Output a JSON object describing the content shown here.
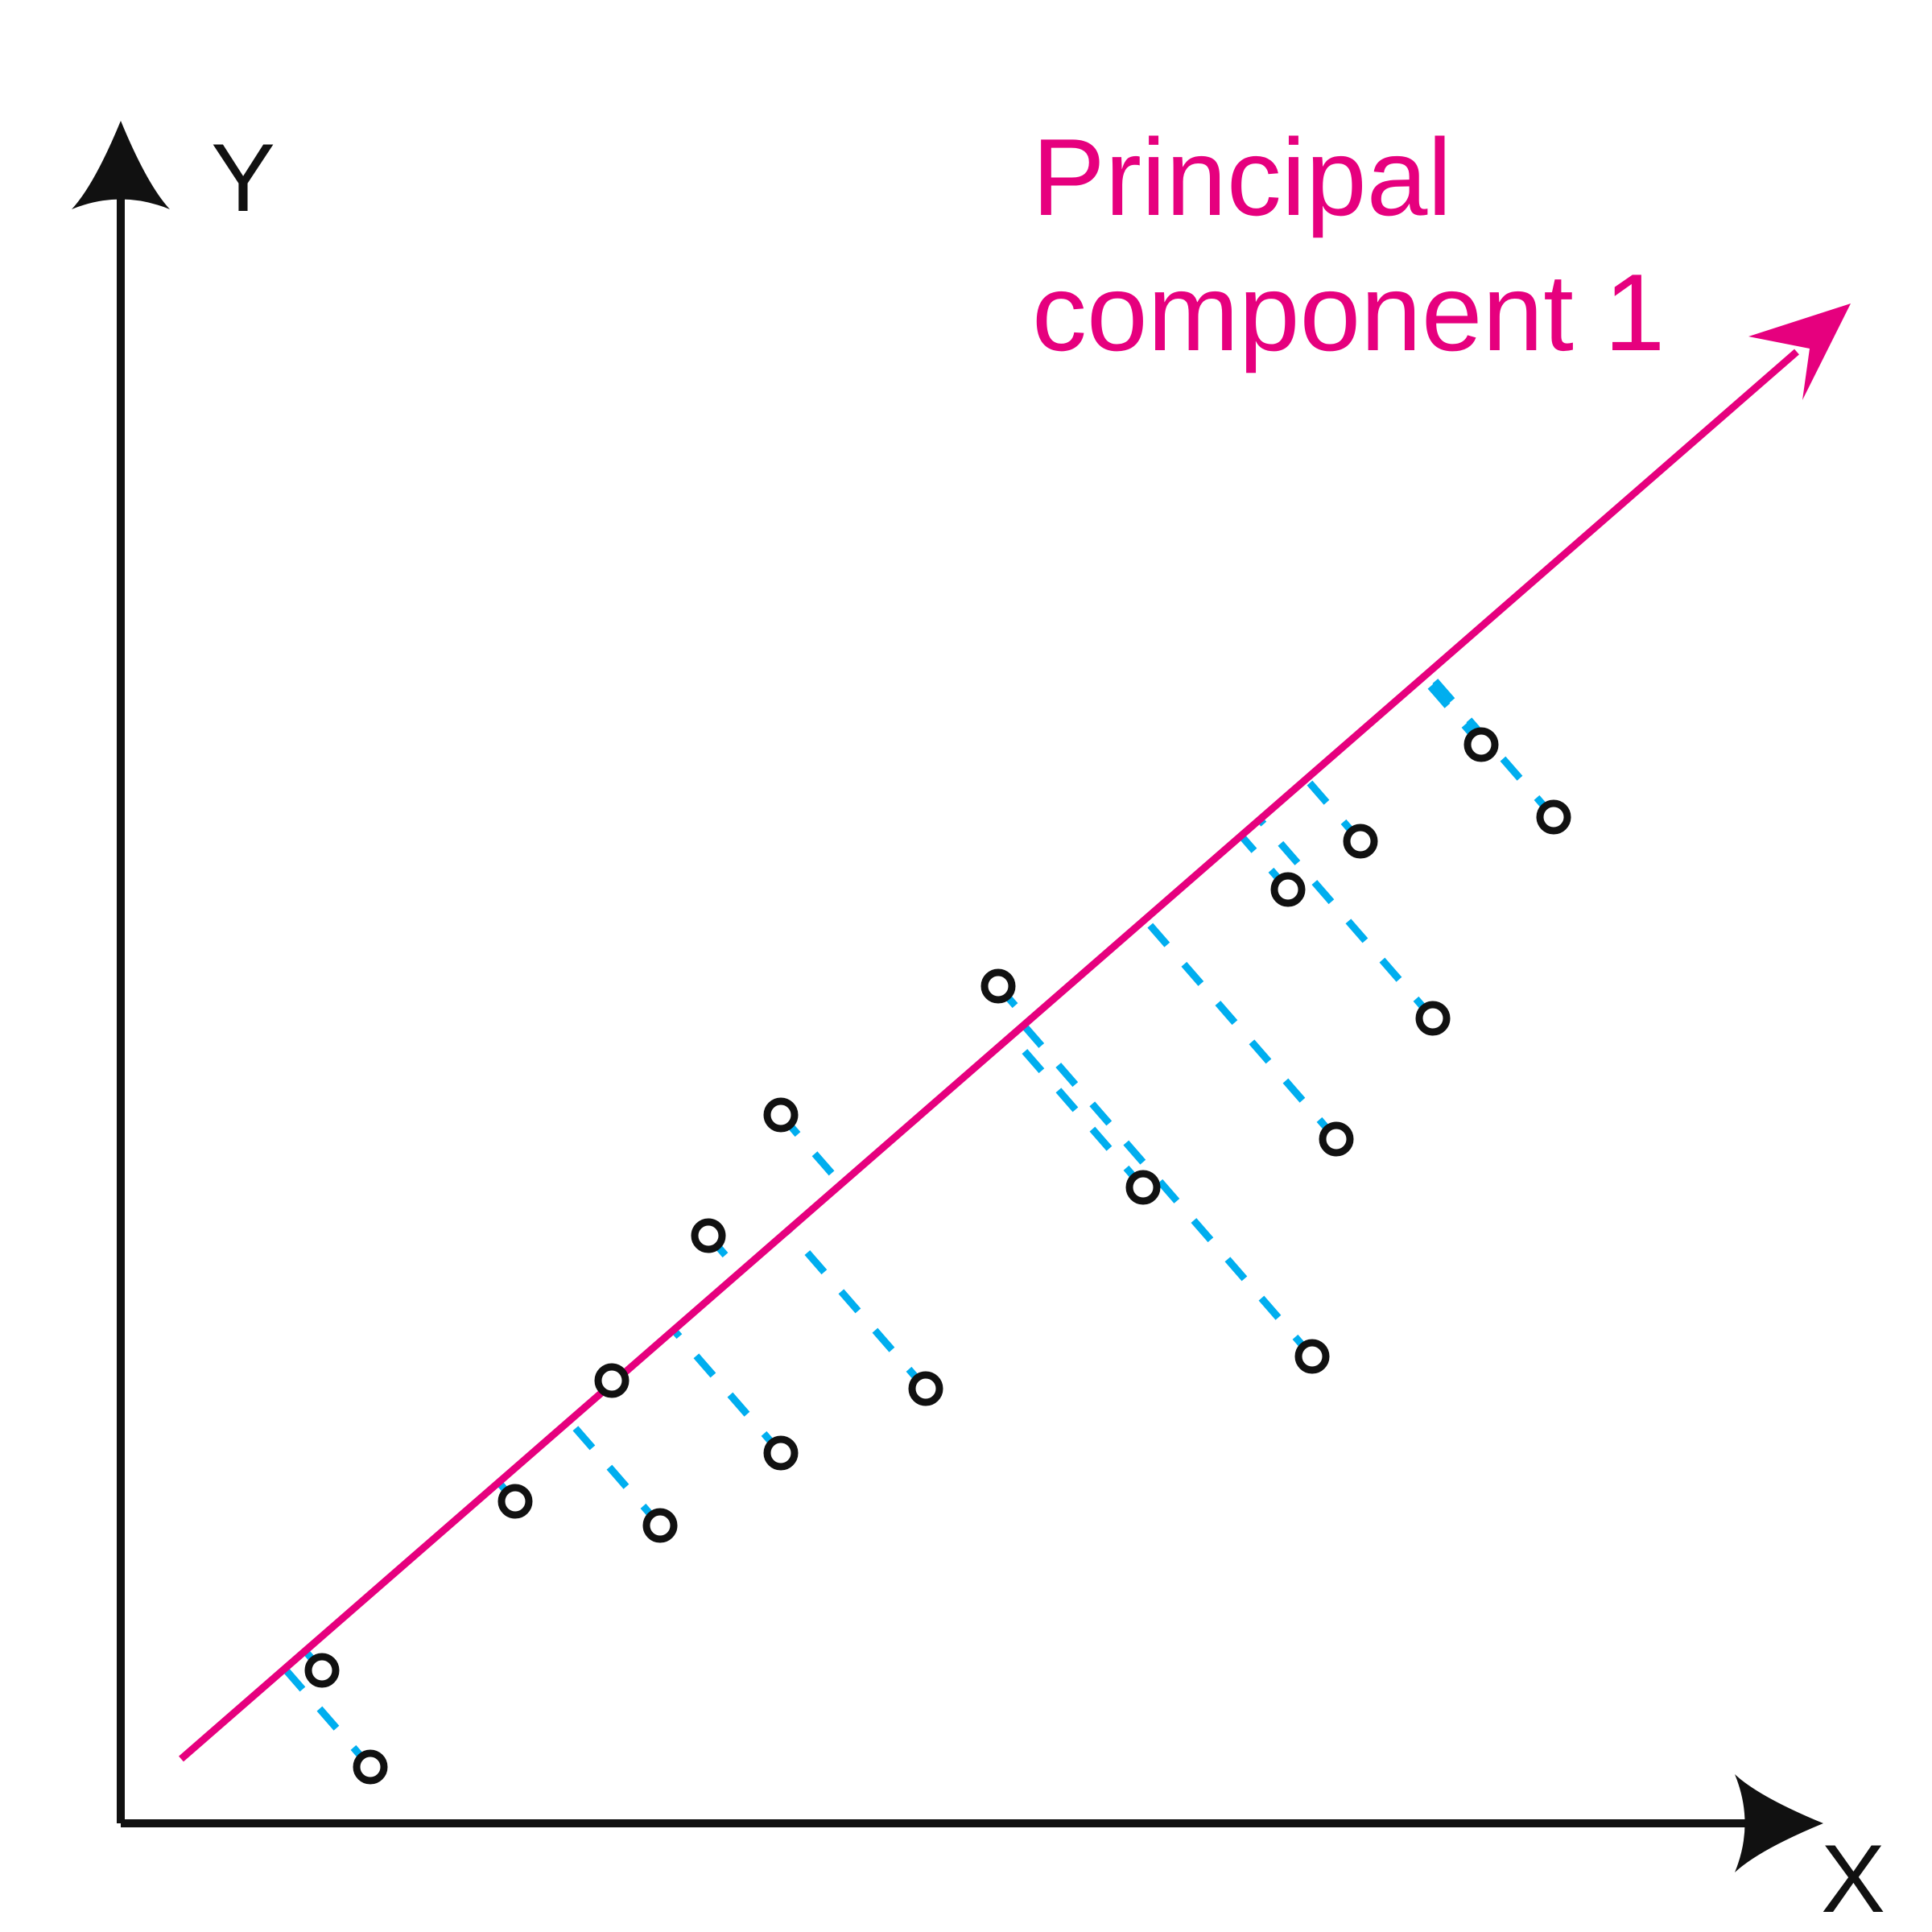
{
  "axes": {
    "x_label": "X",
    "y_label": "Y"
  },
  "principal_component": {
    "label_line1": "Principal",
    "label_line2": "component 1"
  },
  "colors": {
    "axis": "#111111",
    "principal_component": "#e6007e",
    "projection": "#00aeef",
    "point": "#111111"
  },
  "points": [
    {
      "x": 2.5,
      "y": 1.9
    },
    {
      "x": 3.1,
      "y": 0.7
    },
    {
      "x": 4.9,
      "y": 4.0
    },
    {
      "x": 6.1,
      "y": 5.5
    },
    {
      "x": 6.7,
      "y": 3.7
    },
    {
      "x": 7.3,
      "y": 7.3
    },
    {
      "x": 8.2,
      "y": 4.6
    },
    {
      "x": 8.2,
      "y": 8.8
    },
    {
      "x": 10.0,
      "y": 5.4
    },
    {
      "x": 10.9,
      "y": 10.4
    },
    {
      "x": 12.7,
      "y": 7.9
    },
    {
      "x": 14.5,
      "y": 11.6
    },
    {
      "x": 14.8,
      "y": 5.8
    },
    {
      "x": 15.1,
      "y": 8.5
    },
    {
      "x": 15.4,
      "y": 12.2
    },
    {
      "x": 16.3,
      "y": 10.0
    },
    {
      "x": 16.9,
      "y": 13.4
    },
    {
      "x": 17.8,
      "y": 12.5
    }
  ]
}
